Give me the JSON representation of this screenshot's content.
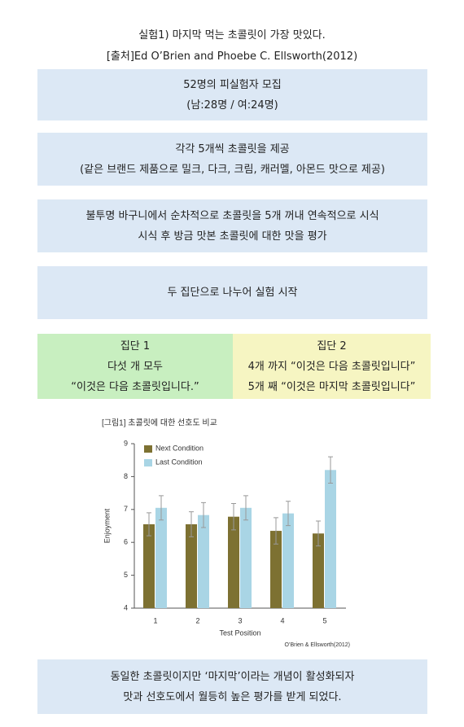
{
  "header": {
    "title": "실험1) 마지막 먹는 초콜릿이 가장 맛있다.",
    "source": "[출처]Ed O’Brien and Phoebe C. Ellsworth(2012)"
  },
  "steps": [
    {
      "lines": [
        "52명의 피실험자 모집",
        "(남:28명 / 여:24명)"
      ]
    },
    {
      "lines": [
        "각각 5개씩 초콜릿을 제공",
        "(같은 브랜드 제품으로 밀크, 다크, 크림, 캐러멜, 아몬드 맛으로 제공)"
      ]
    },
    {
      "lines": [
        "불투명 바구니에서 순차적으로 초콜릿을 5개 꺼내 연속적으로 시식",
        "시식 후 방금 맛본 초콜릿에 대한 맛을 평가"
      ]
    },
    {
      "lines": [
        "두 집단으로 나누어 실험 시작"
      ]
    }
  ],
  "groups": [
    {
      "lines": [
        "집단 1",
        "다섯 개 모두",
        "“이것은 다음 초콜릿입니다.”"
      ]
    },
    {
      "lines": [
        "집단 2",
        "4개 까지 “이것은 다음 초콜릿입니다”",
        "5개 째 “이것은 마지막 초콜릿입니다”"
      ]
    }
  ],
  "figure": {
    "caption": "[그림1] 초콜릿에 대한 선호도 비교",
    "chart_data": {
      "type": "bar",
      "categories": [
        "1",
        "2",
        "3",
        "4",
        "5"
      ],
      "x_label": "Test Position",
      "y_label": "Enjoyment",
      "source": "O’Brien & Ellsworth(2012)",
      "series": [
        {
          "name": "Next Condition",
          "color": "#7d7132",
          "values": [
            6.55,
            6.55,
            6.78,
            6.35,
            6.27
          ],
          "errors": [
            0.35,
            0.38,
            0.4,
            0.4,
            0.38
          ]
        },
        {
          "name": "Last Condition",
          "color": "#a9d5e5",
          "values": [
            7.05,
            6.83,
            7.05,
            6.88,
            8.2
          ],
          "errors": [
            0.37,
            0.38,
            0.37,
            0.37,
            0.4
          ]
        }
      ],
      "ylim": [
        4,
        9
      ],
      "yticks": [
        4,
        5,
        6,
        7,
        8,
        9
      ],
      "legend": "upper left"
    }
  },
  "conclusion": {
    "lines": [
      "동일한 초콜릿이지만 ‘마지막’이라는 개념이 활성화되자",
      "맛과 선호도에서 월등히 높은 평가를 받게 되었다."
    ]
  }
}
